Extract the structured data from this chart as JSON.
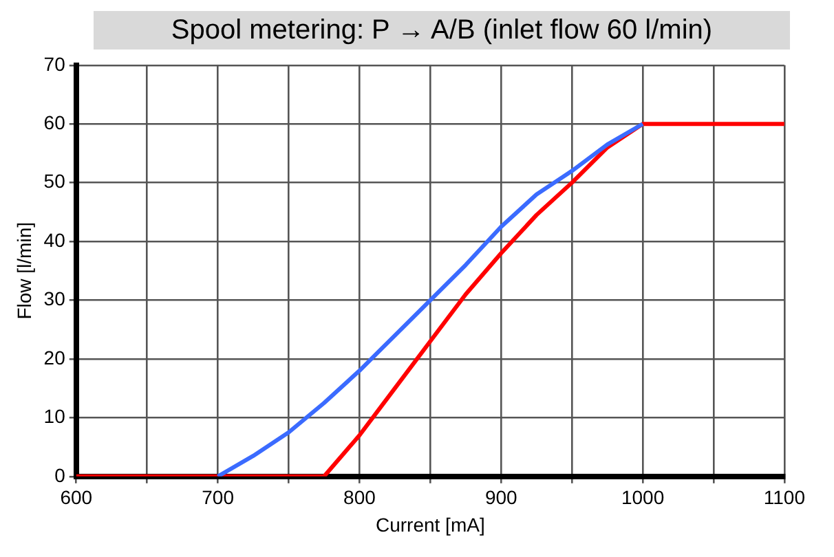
{
  "chart_data": {
    "type": "line",
    "title": "Spool metering: P → A/B (inlet flow 60 l/min)",
    "xlabel": "Current [mA]",
    "ylabel": "Flow [l/min]",
    "xlim": [
      600,
      1100
    ],
    "xticks": [
      600,
      {
        "value": 650,
        "label": null
      },
      700,
      {
        "value": 750,
        "label": null
      },
      800,
      {
        "value": 850,
        "label": null
      },
      900,
      {
        "value": 950,
        "label": null
      },
      1000,
      {
        "value": 1050,
        "label": null
      },
      1100
    ],
    "ylim": [
      0,
      70
    ],
    "yticks": [
      0,
      10,
      20,
      30,
      40,
      50,
      60,
      70
    ],
    "grid": true,
    "legend": false,
    "marker": "none",
    "line_style": "solid",
    "series": [
      {
        "color": "#3b6bff",
        "x": [
          700,
          725,
          750,
          775,
          800,
          825,
          850,
          875,
          900,
          925,
          950,
          975,
          1000
        ],
        "values": [
          0,
          3.5,
          7.5,
          12.5,
          18,
          24,
          30,
          36,
          42.5,
          48,
          52,
          56.5,
          60
        ]
      },
      {
        "color": "#ff0000",
        "x": [
          600,
          775,
          800,
          825,
          850,
          875,
          900,
          925,
          950,
          975,
          1000,
          1100
        ],
        "values": [
          0,
          0,
          7,
          15,
          23,
          31,
          38,
          44.5,
          50,
          56,
          60,
          60
        ]
      }
    ]
  }
}
